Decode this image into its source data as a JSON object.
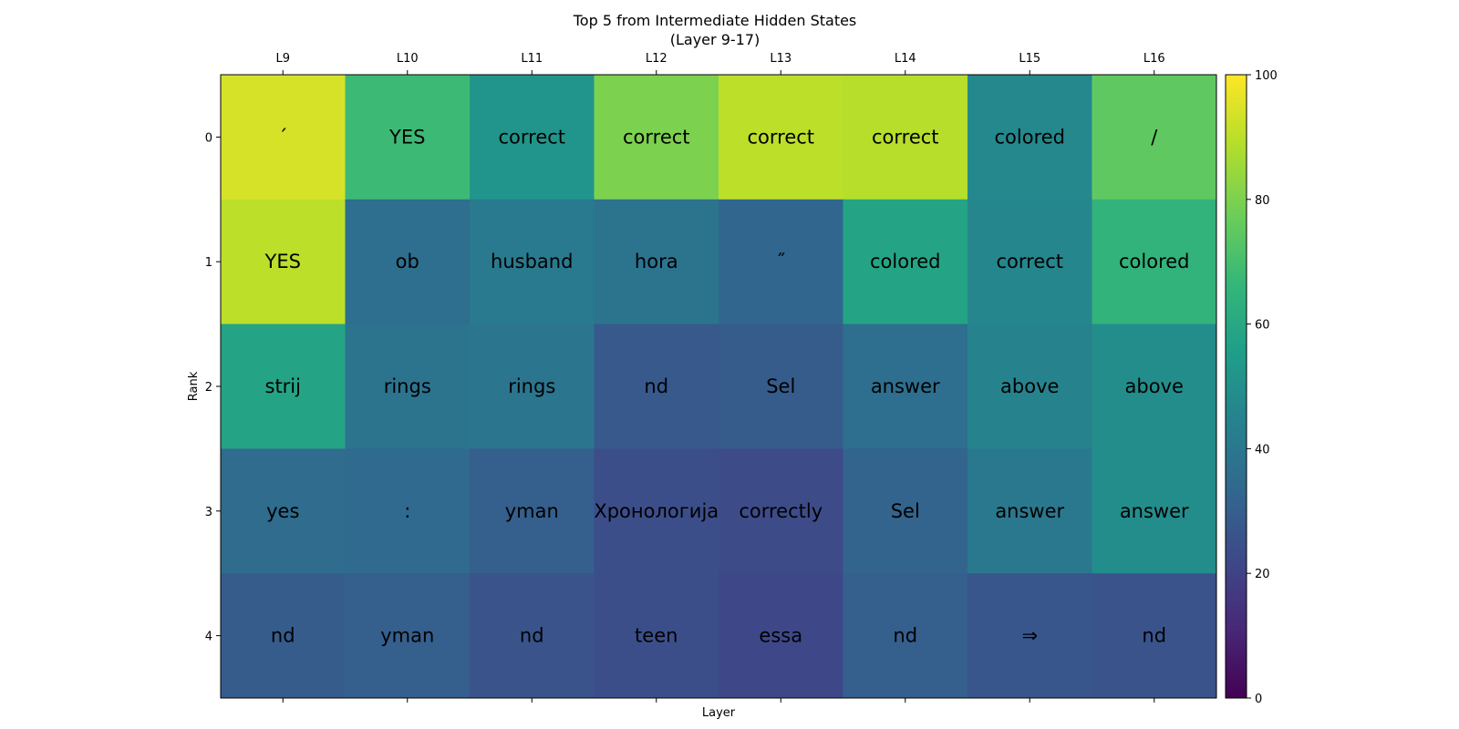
{
  "chart_data": {
    "type": "heatmap",
    "title": "Top 5 from Intermediate Hidden States\n(Layer 9-17)",
    "xlabel": "Layer",
    "ylabel": "Rank",
    "x_ticks": [
      "L9",
      "L10",
      "L11",
      "L12",
      "L13",
      "L14",
      "L15",
      "L16"
    ],
    "y_ticks": [
      "0",
      "1",
      "2",
      "3",
      "4"
    ],
    "tokens": [
      [
        "´",
        "YES",
        "correct",
        "correct",
        "correct",
        "correct",
        "colored",
        "/"
      ],
      [
        "YES",
        "ob",
        "husband",
        "hora",
        "˝",
        "colored",
        "correct",
        "colored"
      ],
      [
        "strij",
        "rings",
        "rings",
        "nd",
        "Sel",
        "answer",
        "above",
        "above"
      ],
      [
        "yes",
        ":",
        "yman",
        "Хронологија",
        "correctly",
        "Sel",
        "answer",
        "answer"
      ],
      [
        "nd",
        "yman",
        "nd",
        "teen",
        "essa",
        "nd",
        "⇒",
        "nd"
      ]
    ],
    "values": [
      [
        94,
        68,
        52,
        80,
        90,
        89,
        47,
        75
      ],
      [
        90,
        36,
        41,
        38,
        33,
        58,
        46,
        65
      ],
      [
        58,
        38,
        39,
        28,
        29,
        36,
        45,
        49
      ],
      [
        35,
        34,
        30,
        24,
        23,
        32,
        40,
        49
      ],
      [
        29,
        30,
        26,
        24,
        22,
        30,
        27,
        26
      ]
    ],
    "colorbar": {
      "min": 0,
      "max": 100,
      "ticks": [
        0,
        20,
        40,
        60,
        80,
        100
      ]
    },
    "colormap": "viridis"
  }
}
